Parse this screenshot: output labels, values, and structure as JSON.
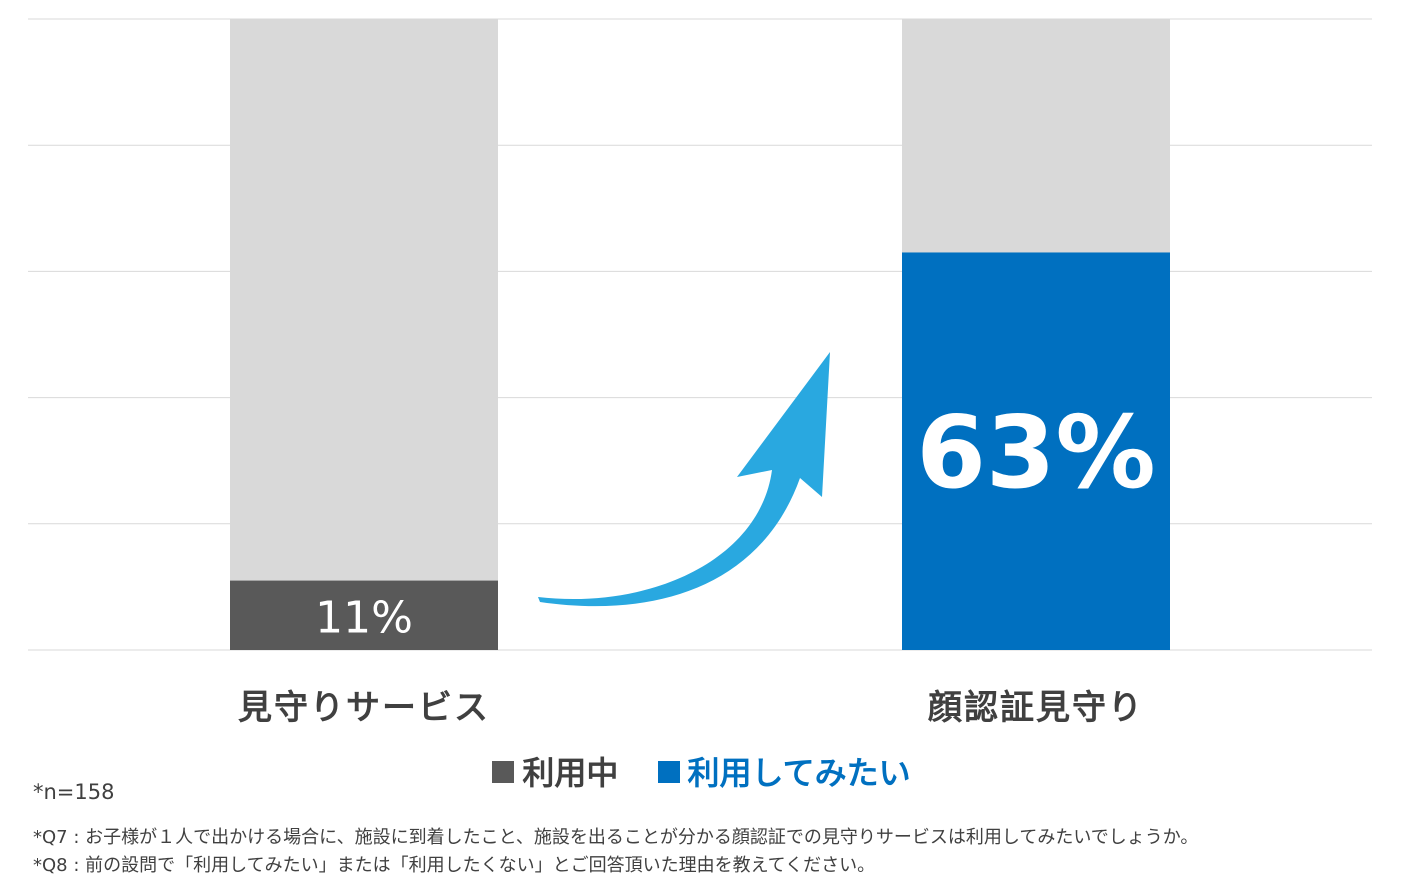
{
  "chart_data": {
    "type": "bar",
    "stacked": true,
    "categories": [
      "見守りサービス",
      "顔認証見守り"
    ],
    "series": [
      {
        "name": "利用中",
        "color": "#595959",
        "values": [
          11,
          null
        ]
      },
      {
        "name": "利用してみたい",
        "color": "#0070c0",
        "values": [
          null,
          63
        ]
      }
    ],
    "remainder_color": "#d9d9d9",
    "data_labels": [
      "11%",
      "63%"
    ],
    "ylim": [
      0,
      100
    ],
    "grid": true,
    "legend": "bottom-center",
    "annotation": "arrow-up-right"
  },
  "colors": {
    "grid": "#d9d9d9",
    "arrow": "#29a8e0"
  },
  "notes": {
    "n": "*n=158",
    "q7": "*Q7 : お子様が１人で出かける場合に、施設に到着したこと、施設を出ることが分かる顔認証での見守りサービスは利用してみたいでしょうか。",
    "q8": "*Q8 : 前の設問で「利用してみたい」または「利用したくない」とご回答頂いた理由を教えてください。"
  }
}
